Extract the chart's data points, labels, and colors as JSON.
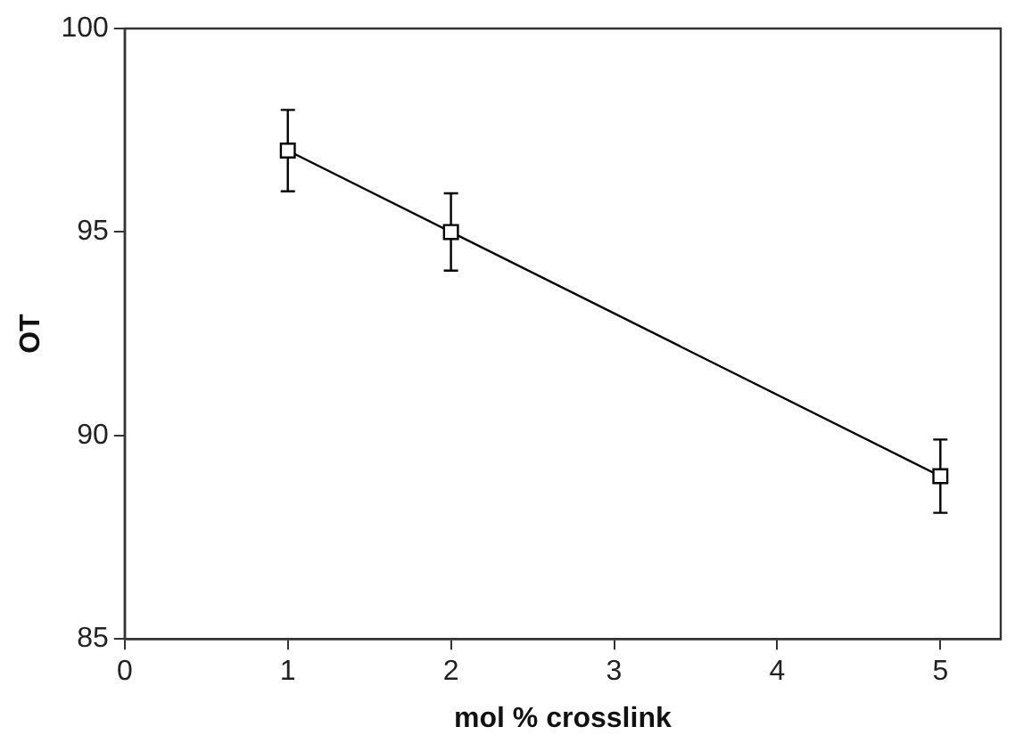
{
  "chart_data": {
    "type": "line",
    "xlabel": "mol % crosslink",
    "ylabel": "OT",
    "x": [
      1,
      2,
      5
    ],
    "series": [
      {
        "color": "#000000",
        "values": [
          97,
          95,
          89
        ],
        "errors": [
          1,
          0.95,
          0.9
        ]
      }
    ],
    "xlim": [
      0,
      5.37
    ],
    "xticks": [
      0,
      1,
      2,
      3,
      4,
      5
    ],
    "ylim": [
      85,
      100
    ],
    "yticks": [
      85,
      90,
      95,
      100
    ],
    "grid": false,
    "legend": false,
    "marker": "square",
    "line_style": "solid"
  }
}
